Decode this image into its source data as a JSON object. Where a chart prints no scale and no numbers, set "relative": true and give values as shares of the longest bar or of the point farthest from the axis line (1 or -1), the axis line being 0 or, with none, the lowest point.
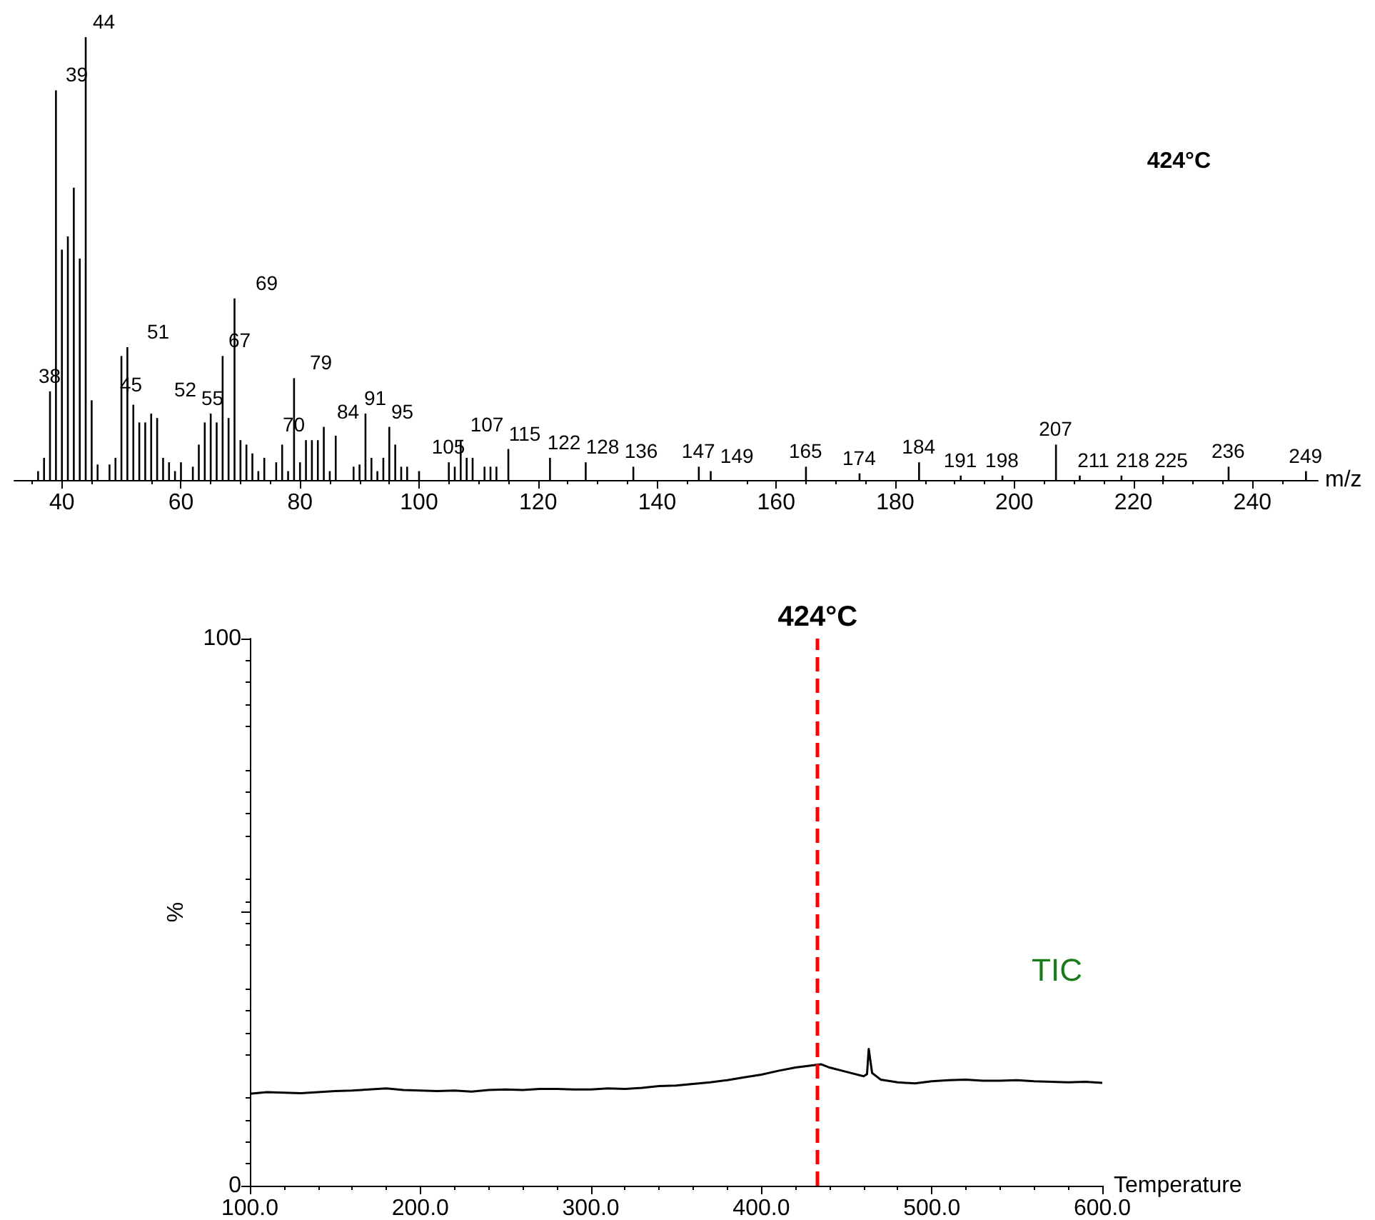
{
  "chart_data": [
    {
      "type": "bar",
      "title": "424°C",
      "xlabel": "m/z",
      "relative": true,
      "color": "#000000",
      "xlim": [
        32,
        251
      ],
      "xticks": [
        40,
        60,
        80,
        100,
        120,
        140,
        160,
        180,
        200,
        220,
        240
      ],
      "grid": false,
      "x": [
        36,
        37,
        38,
        39,
        40,
        41,
        42,
        43,
        44,
        45,
        46,
        48,
        49,
        50,
        51,
        52,
        53,
        54,
        55,
        56,
        57,
        58,
        59,
        60,
        62,
        63,
        64,
        65,
        66,
        67,
        68,
        69,
        70,
        71,
        72,
        73,
        74,
        76,
        77,
        78,
        79,
        80,
        81,
        82,
        83,
        84,
        85,
        86,
        89,
        90,
        91,
        92,
        93,
        94,
        95,
        96,
        97,
        98,
        100,
        105,
        106,
        107,
        108,
        109,
        111,
        112,
        113,
        115,
        122,
        128,
        136,
        147,
        149,
        165,
        174,
        184,
        191,
        198,
        207,
        211,
        218,
        225,
        236,
        249
      ],
      "values": [
        0.02,
        0.05,
        0.2,
        0.88,
        0.52,
        0.55,
        0.66,
        0.5,
        1,
        0.18,
        0.035,
        0.035,
        0.05,
        0.28,
        0.3,
        0.17,
        0.13,
        0.13,
        0.15,
        0.14,
        0.05,
        0.04,
        0.02,
        0.04,
        0.03,
        0.08,
        0.13,
        0.15,
        0.13,
        0.28,
        0.14,
        0.41,
        0.09,
        0.08,
        0.06,
        0.02,
        0.05,
        0.04,
        0.08,
        0.02,
        0.23,
        0.04,
        0.09,
        0.09,
        0.09,
        0.12,
        0.02,
        0.1,
        0.03,
        0.035,
        0.15,
        0.05,
        0.02,
        0.05,
        0.12,
        0.08,
        0.03,
        0.03,
        0.02,
        0.04,
        0.03,
        0.09,
        0.05,
        0.05,
        0.03,
        0.03,
        0.03,
        0.07,
        0.05,
        0.04,
        0.03,
        0.03,
        0.02,
        0.03,
        0.015,
        0.04,
        0.01,
        0.01,
        0.08,
        0.01,
        0.01,
        0.01,
        0.03,
        0.02
      ],
      "annotations": [
        {
          "text": "38",
          "x": 38,
          "y": 0.2
        },
        {
          "text": "39",
          "x": 39,
          "y": 0.88
        },
        {
          "text": "44",
          "x": 44,
          "y": 1
        },
        {
          "text": "45",
          "x": 45,
          "y": 0.18
        },
        {
          "text": "51",
          "x": 51,
          "y": 0.3
        },
        {
          "text": "52",
          "x": 52,
          "y": 0.17
        },
        {
          "text": "55",
          "x": 55,
          "y": 0.15
        },
        {
          "text": "67",
          "x": 67,
          "y": 0.28
        },
        {
          "text": "69",
          "x": 69,
          "y": 0.41
        },
        {
          "text": "70",
          "x": 70,
          "y": 0.09
        },
        {
          "text": "79",
          "x": 79,
          "y": 0.23
        },
        {
          "text": "84",
          "x": 84,
          "y": 0.12
        },
        {
          "text": "91",
          "x": 91,
          "y": 0.15
        },
        {
          "text": "95",
          "x": 95,
          "y": 0.12
        },
        {
          "text": "105",
          "x": 105,
          "y": 0.04
        },
        {
          "text": "107",
          "x": 107,
          "y": 0.09
        },
        {
          "text": "115",
          "x": 115,
          "y": 0.07
        },
        {
          "text": "122",
          "x": 122,
          "y": 0.05
        },
        {
          "text": "128",
          "x": 128,
          "y": 0.04
        },
        {
          "text": "136",
          "x": 136,
          "y": 0.03
        },
        {
          "text": "147",
          "x": 147,
          "y": 0.03
        },
        {
          "text": "149",
          "x": 149,
          "y": 0.02
        },
        {
          "text": "165",
          "x": 165,
          "y": 0.03
        },
        {
          "text": "174",
          "x": 174,
          "y": 0.015
        },
        {
          "text": "184",
          "x": 184,
          "y": 0.04
        },
        {
          "text": "191",
          "x": 191,
          "y": 0.01
        },
        {
          "text": "198",
          "x": 198,
          "y": 0.01
        },
        {
          "text": "207",
          "x": 207,
          "y": 0.08
        },
        {
          "text": "211",
          "x": 211,
          "y": 0.01
        },
        {
          "text": "218",
          "x": 218,
          "y": 0.01
        },
        {
          "text": "225",
          "x": 225,
          "y": 0.01
        },
        {
          "text": "236",
          "x": 236,
          "y": 0.03
        },
        {
          "text": "249",
          "x": 249,
          "y": 0.02
        }
      ]
    },
    {
      "type": "line",
      "xlabel": "Temperature",
      "ylabel": "%",
      "color": "#000000",
      "marker": "none",
      "line_style": "solid",
      "grid": false,
      "xlim": [
        100,
        600
      ],
      "ylim": [
        0,
        100
      ],
      "xticks": [
        {
          "value": 100,
          "label": "100.0"
        },
        {
          "value": 200,
          "label": "200.0"
        },
        {
          "value": 300,
          "label": "300.0"
        },
        {
          "value": 400,
          "label": "400.0"
        },
        {
          "value": 500,
          "label": "500.0"
        },
        {
          "value": 600,
          "label": "600.0"
        }
      ],
      "yticks": [
        0,
        {
          "value": 50,
          "label": null
        },
        100
      ],
      "x": [
        100,
        110,
        120,
        130,
        140,
        150,
        160,
        170,
        180,
        190,
        200,
        210,
        220,
        230,
        240,
        250,
        260,
        270,
        280,
        290,
        300,
        310,
        320,
        330,
        340,
        350,
        360,
        370,
        380,
        390,
        400,
        410,
        420,
        425,
        430,
        435,
        440,
        450,
        460,
        462,
        463,
        465,
        470,
        480,
        490,
        500,
        510,
        520,
        530,
        540,
        550,
        560,
        570,
        580,
        590,
        600
      ],
      "values": [
        16.8,
        17.1,
        17.0,
        16.9,
        17.1,
        17.3,
        17.4,
        17.6,
        17.8,
        17.5,
        17.4,
        17.3,
        17.4,
        17.2,
        17.5,
        17.6,
        17.5,
        17.7,
        17.7,
        17.6,
        17.6,
        17.8,
        17.7,
        17.9,
        18.2,
        18.3,
        18.6,
        18.9,
        19.3,
        19.8,
        20.3,
        21.0,
        21.6,
        21.8,
        22.0,
        22.2,
        21.6,
        20.8,
        20.0,
        20.4,
        25.0,
        20.6,
        19.4,
        18.9,
        18.7,
        19.1,
        19.3,
        19.4,
        19.2,
        19.2,
        19.3,
        19.1,
        19.0,
        18.9,
        19.0,
        18.8
      ],
      "ref_lines": [
        {
          "axis": "x",
          "value": 433,
          "label": "424°C",
          "color": "#ff0000",
          "line_style": "dashed"
        }
      ],
      "annotations": [
        "TIC"
      ]
    }
  ]
}
